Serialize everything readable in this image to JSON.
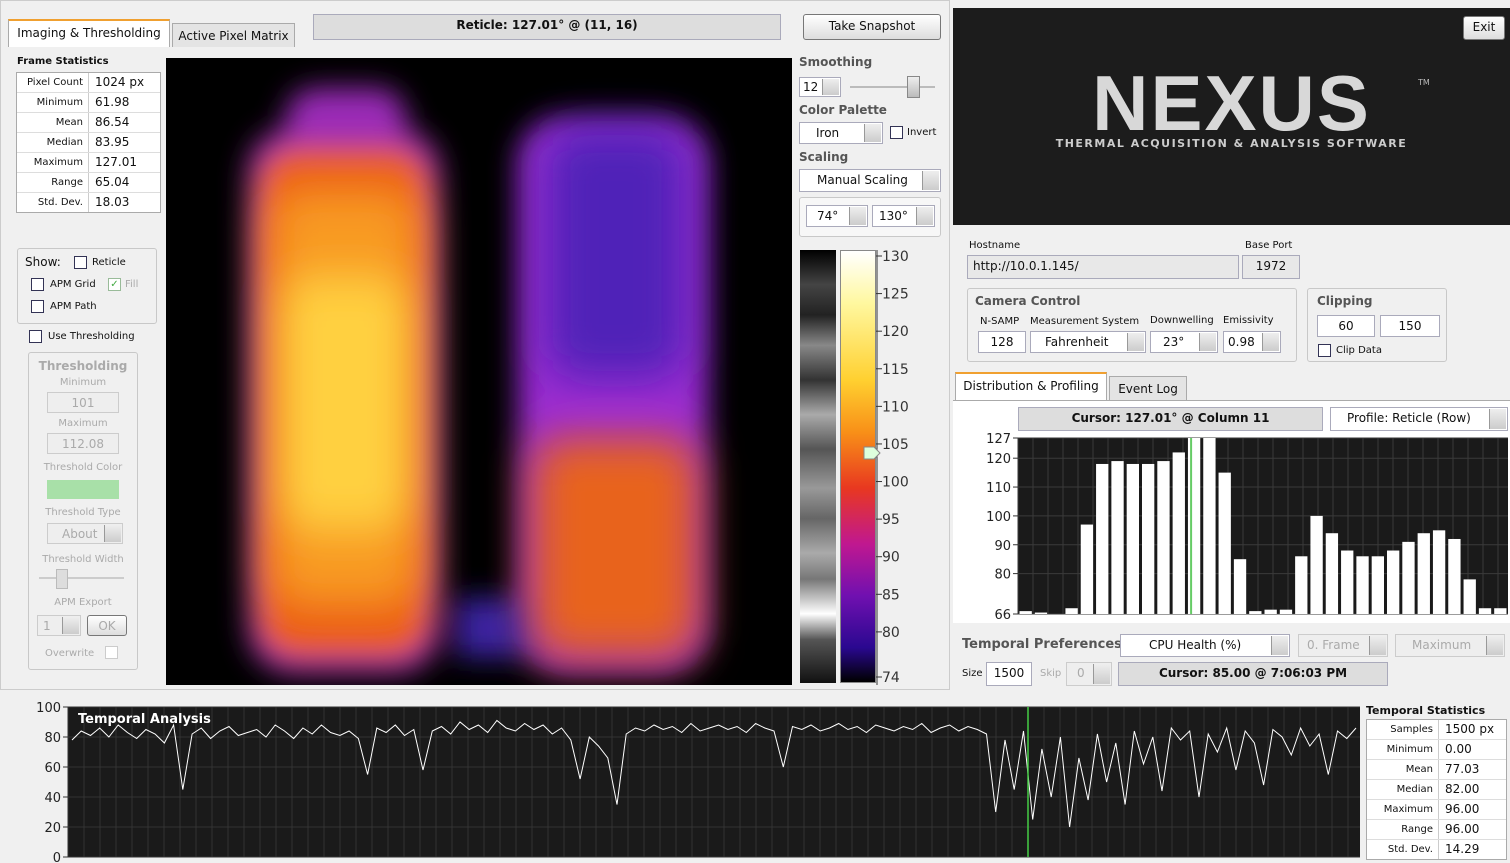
{
  "tabs_left": [
    "Imaging & Thresholding",
    "Active Pixel Matrix"
  ],
  "reticle": "Reticle: 127.01° @ (11, 16)",
  "snapshot_button": "Take Snapshot",
  "frame_statistics": {
    "title": "Frame Statistics",
    "rows": [
      [
        "Pixel Count",
        "1024 px"
      ],
      [
        "Minimum",
        "61.98"
      ],
      [
        "Mean",
        "86.54"
      ],
      [
        "Median",
        "83.95"
      ],
      [
        "Maximum",
        "127.01"
      ],
      [
        "Range",
        "65.04"
      ],
      [
        "Std. Dev.",
        "18.03"
      ]
    ]
  },
  "show": {
    "label": "Show:",
    "reticle": "Reticle",
    "apm_grid": "APM Grid",
    "fill": "Fill",
    "apm_path": "APM Path",
    "use_thresholding": "Use Thresholding"
  },
  "thresholding": {
    "title": "Thresholding",
    "minimum_label": "Minimum",
    "minimum": "101",
    "maximum_label": "Maximum",
    "maximum": "112.08",
    "color_label": "Threshold Color",
    "type_label": "Threshold Type",
    "type": "About",
    "width_label": "Threshold Width",
    "export_label": "APM Export",
    "export": "1",
    "ok": "OK",
    "overwrite": "Overwrite"
  },
  "smoothing": {
    "label": "Smoothing",
    "value": "12"
  },
  "palette": {
    "label": "Color Palette",
    "value": "Iron",
    "invert": "Invert"
  },
  "scaling": {
    "label": "Scaling",
    "mode": "Manual Scaling",
    "min": "74°",
    "max": "130°"
  },
  "colorbar": {
    "ticks": [
      130,
      125,
      120,
      115,
      110,
      105,
      100,
      95,
      90,
      85,
      80,
      74
    ]
  },
  "exit": "Exit",
  "logo": {
    "name": "NEXUS",
    "tm": "TM",
    "tagline": "THERMAL ACQUISITION & ANALYSIS SOFTWARE"
  },
  "connection": {
    "hostname_label": "Hostname",
    "hostname": "http://10.0.1.145/",
    "port_label": "Base Port",
    "port": "1972"
  },
  "camera": {
    "title": "Camera Control",
    "nsamp_label": "N-SAMP",
    "nsamp": "128",
    "system_label": "Measurement System",
    "system": "Fahrenheit",
    "downwelling_label": "Downwelling",
    "downwelling": "23°",
    "emissivity_label": "Emissivity",
    "emissivity": "0.98"
  },
  "clipping": {
    "title": "Clipping",
    "min": "60",
    "max": "150",
    "clip": "Clip Data"
  },
  "tabs_right": [
    "Distribution & Profiling",
    "Event Log"
  ],
  "profile": {
    "type": "bar",
    "cursor": "Cursor: 127.01° @ Column 11",
    "mode": "Profile: Reticle (Row)",
    "ylim": [
      66,
      127
    ],
    "yticks": [
      66,
      80,
      90,
      100,
      110,
      120,
      127
    ],
    "color": "#ffffff",
    "values": [
      67,
      66.5,
      66,
      68,
      97,
      118,
      119,
      118,
      118,
      119,
      122,
      127,
      127,
      115,
      85,
      67,
      67.5,
      67.5,
      86,
      100,
      94,
      88,
      86,
      86,
      88,
      91,
      94,
      95,
      92,
      78,
      68,
      68
    ]
  },
  "temporal_prefs": {
    "title": "Temporal Preferences",
    "source": "CPU Health (%)",
    "frame": "0. Frame",
    "stat": "Maximum",
    "size_label": "Size",
    "size": "1500",
    "skip_label": "Skip",
    "skip": "0",
    "cursor": "Cursor: 85.00 @ 7:06:03 PM"
  },
  "temporal": {
    "type": "line",
    "title": "Temporal Analysis",
    "ylim": [
      0,
      100
    ],
    "yticks": [
      0,
      20,
      40,
      60,
      80,
      100
    ],
    "color": "#ffffff",
    "values": [
      78,
      84,
      81,
      86,
      80,
      88,
      83,
      79,
      85,
      82,
      76,
      88,
      45,
      82,
      86,
      79,
      84,
      87,
      81,
      83,
      85,
      80,
      88,
      84,
      79,
      86,
      82,
      88,
      83,
      81,
      84,
      79,
      55,
      86,
      83,
      88,
      81,
      85,
      58,
      84,
      87,
      82,
      90,
      85,
      88,
      83,
      91,
      86,
      84,
      89,
      85,
      88,
      82,
      86,
      78,
      52,
      80,
      74,
      66,
      35,
      82,
      86,
      84,
      88,
      85,
      87,
      83,
      89,
      84,
      86,
      88,
      85,
      87,
      83,
      89,
      86,
      84,
      60,
      87,
      85,
      88,
      84,
      86,
      89,
      85,
      87,
      83,
      88,
      86,
      84,
      87,
      85,
      89,
      83,
      86,
      88,
      84,
      87,
      85,
      82,
      30,
      78,
      45,
      84,
      25,
      72,
      40,
      80,
      20,
      66,
      38,
      82,
      50,
      76,
      35,
      84,
      62,
      80,
      44,
      86,
      78,
      84,
      40,
      82,
      70,
      86,
      58,
      84,
      76,
      48,
      85,
      80,
      68,
      86,
      74,
      82,
      55,
      84,
      79,
      86
    ]
  },
  "temporal_statistics": {
    "title": "Temporal Statistics",
    "rows": [
      [
        "Samples",
        "1500 px"
      ],
      [
        "Minimum",
        "0.00"
      ],
      [
        "Mean",
        "77.03"
      ],
      [
        "Median",
        "82.00"
      ],
      [
        "Maximum",
        "96.00"
      ],
      [
        "Range",
        "96.00"
      ],
      [
        "Std. Dev.",
        "14.29"
      ]
    ]
  }
}
